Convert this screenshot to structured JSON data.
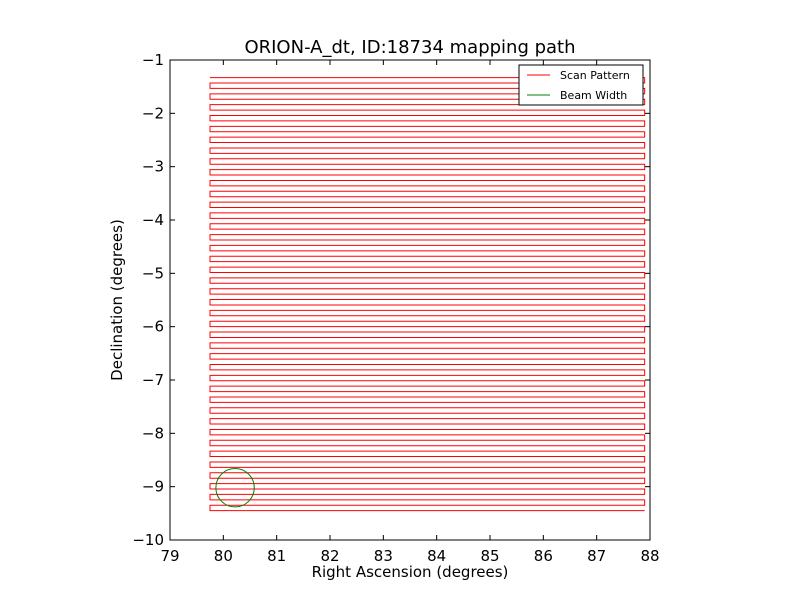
{
  "chart_data": {
    "type": "line",
    "title": "ORION-A_dt, ID:18734 mapping path",
    "xlabel": "Right Ascension (degrees)",
    "ylabel": "Declination (degrees)",
    "xlim": [
      79,
      88
    ],
    "ylim": [
      -10,
      -1
    ],
    "xticks": [
      "79",
      "80",
      "81",
      "82",
      "83",
      "84",
      "85",
      "86",
      "87",
      "88"
    ],
    "yticks": [
      "−1",
      "−2",
      "−3",
      "−4",
      "−5",
      "−6",
      "−7",
      "−8",
      "−9",
      "−10"
    ],
    "grid": false,
    "legend_placement": "top-right",
    "series": [
      {
        "name": "Scan Pattern",
        "color": "#ff0000",
        "pattern": "boustrophedon raster",
        "ra_range": [
          79.75,
          87.9
        ],
        "dec_start": -1.33,
        "dec_end": -9.45,
        "num_legs": 81
      },
      {
        "name": "Beam Width",
        "color": "#008000",
        "shape": "circle",
        "center": [
          80.22,
          -9.02
        ],
        "radius_deg": 0.36
      }
    ]
  }
}
